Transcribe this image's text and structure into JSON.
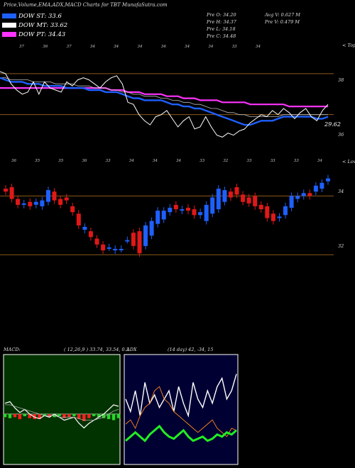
{
  "title": "Price,Volume,EMA,ADX,MACD Charts for TBT MunafaSutra.com",
  "legend": [
    {
      "label": "DOW ST: 33.6",
      "color": "#1e60ff"
    },
    {
      "label": "DOW MT: 33.62",
      "color": "#ffffff"
    },
    {
      "label": "DOW PT: 34.43",
      "color": "#ff33ff"
    }
  ],
  "ohlc": {
    "prev_open": "Pre O: 34.20",
    "prev_high": "Pre H: 34.37",
    "prev_low": "Pre L: 34.18",
    "prev_close": "Pre C: 34.48",
    "avg_volume": "Avg V: 0.627 M",
    "prev_volume": "Pre V: 0.479 M"
  },
  "upper_panel": {
    "corner_label": "< Tops",
    "last_value_label": "29.62",
    "level_labels": [
      "38",
      "36"
    ],
    "top_tick_labels": [
      "37",
      "36",
      "37",
      "34",
      "34",
      "34",
      "34",
      "34",
      "34",
      "33",
      "34"
    ]
  },
  "candle_panel": {
    "corner_label": "< Lows",
    "level_labels": [
      "34",
      "32"
    ],
    "top_tick_labels": [
      "36",
      "35",
      "35",
      "36",
      "33",
      "34",
      "34",
      "34",
      "33",
      "32",
      "33",
      "33",
      "33",
      "34"
    ]
  },
  "macd_panel": {
    "label": "MACD:",
    "values": "( 12,26,9 ) 33.74, 33.54, 0.2"
  },
  "adx_panel": {
    "label": "ADX",
    "values": "(14 day) 42, -34, 15"
  },
  "colors": {
    "background": "#000000",
    "up_candle": "#1e60ff",
    "down_candle": "#e01818",
    "ema_short": "#1e60ff",
    "ema_long": "#ff33ff",
    "level_line": "#8a5a1a",
    "macd_bg": "#003300",
    "adx_bg": "#000033"
  },
  "chart_data": [
    {
      "type": "line",
      "name": "price-ema",
      "x": [
        1,
        2,
        3,
        4,
        5,
        6,
        7,
        8,
        9,
        10,
        11,
        12,
        13,
        14,
        15,
        16,
        17,
        18,
        19,
        20,
        21,
        22,
        23,
        24,
        25,
        26,
        27,
        28,
        29,
        30,
        31,
        32,
        33,
        34,
        35,
        36,
        37,
        38,
        39,
        40,
        41,
        42,
        43,
        44,
        45,
        46,
        47,
        48,
        49,
        50,
        51,
        52,
        53,
        54,
        55,
        56,
        57,
        58,
        59,
        60
      ],
      "series": [
        {
          "name": "DOW ST",
          "values": [
            37.8,
            37.7,
            37.6,
            37.6,
            37.6,
            37.5,
            37.5,
            37.5,
            37.4,
            37.4,
            37.4,
            37.4,
            37.3,
            37.3,
            37.3,
            37.3,
            37.2,
            37.2,
            37.2,
            37.1,
            37.1,
            37.1,
            37.0,
            36.9,
            36.8,
            36.8,
            36.7,
            36.7,
            36.7,
            36.7,
            36.6,
            36.5,
            36.5,
            36.4,
            36.4,
            36.3,
            36.3,
            36.2,
            36.1,
            36.0,
            35.9,
            35.8,
            35.7,
            35.6,
            35.5,
            35.5,
            35.6,
            35.7,
            35.7,
            35.7,
            35.8,
            35.9,
            35.9,
            35.9,
            35.9,
            35.9,
            35.9,
            35.8,
            35.8,
            35.9
          ]
        },
        {
          "name": "DOW MT",
          "values": [
            37.8,
            37.8,
            37.7,
            37.7,
            37.7,
            37.7,
            37.6,
            37.6,
            37.6,
            37.6,
            37.5,
            37.5,
            37.5,
            37.5,
            37.4,
            37.4,
            37.4,
            37.3,
            37.3,
            37.3,
            37.2,
            37.2,
            37.1,
            37.1,
            37.0,
            37.0,
            36.9,
            36.9,
            36.9,
            36.8,
            36.8,
            36.7,
            36.7,
            36.6,
            36.6,
            36.5,
            36.5,
            36.4,
            36.3,
            36.3,
            36.2,
            36.1,
            36.1,
            36.0,
            36.0,
            35.9,
            35.9,
            35.9,
            35.9,
            35.9,
            35.9,
            36.0,
            36.0,
            36.0,
            36.0,
            36.0,
            36.0,
            36.0,
            36.0,
            36.0
          ]
        },
        {
          "name": "DOW PT",
          "values": [
            37.3,
            37.3,
            37.3,
            37.3,
            37.3,
            37.3,
            37.3,
            37.3,
            37.3,
            37.3,
            37.3,
            37.3,
            37.3,
            37.3,
            37.3,
            37.3,
            37.3,
            37.3,
            37.3,
            37.3,
            37.2,
            37.2,
            37.2,
            37.1,
            37.1,
            37.1,
            37.0,
            37.0,
            37.0,
            37.0,
            36.9,
            36.9,
            36.9,
            36.8,
            36.8,
            36.8,
            36.7,
            36.7,
            36.7,
            36.7,
            36.6,
            36.6,
            36.6,
            36.6,
            36.6,
            36.5,
            36.5,
            36.5,
            36.5,
            36.5,
            36.5,
            36.5,
            36.4,
            36.4,
            36.4,
            36.4,
            36.4,
            36.4,
            36.4,
            36.4
          ]
        },
        {
          "name": "Price",
          "values": [
            38.1,
            38.0,
            37.5,
            37.2,
            37.0,
            37.1,
            37.6,
            37.0,
            37.6,
            37.3,
            37.2,
            37.1,
            37.6,
            37.4,
            37.7,
            37.8,
            37.7,
            37.5,
            37.3,
            37.6,
            37.8,
            37.9,
            37.5,
            36.6,
            36.5,
            36.0,
            35.7,
            35.5,
            35.9,
            36.0,
            36.2,
            35.8,
            35.4,
            35.7,
            35.9,
            35.3,
            35.4,
            35.9,
            35.4,
            35.0,
            34.9,
            35.1,
            35.0,
            35.2,
            35.3,
            35.6,
            35.8,
            36.0,
            35.9,
            36.2,
            36.0,
            36.3,
            36.1,
            35.8,
            36.1,
            36.3,
            35.9,
            35.7,
            36.2,
            36.5
          ]
        }
      ],
      "ylim": [
        34.5,
        39.0
      ],
      "levels": [
        38,
        36
      ]
    },
    {
      "type": "bar",
      "name": "candles",
      "series": [
        {
          "name": "open",
          "values": [
            34.25,
            34.3,
            33.9,
            33.7,
            33.8,
            33.7,
            33.65,
            33.8,
            34.15,
            33.9,
            33.95,
            33.65,
            33.4,
            32.85,
            32.8,
            32.55,
            32.35,
            32.25,
            32.15,
            32.2,
            32.5,
            32.75,
            32.8,
            32.3,
            32.65,
            33.05,
            33.2,
            33.45,
            33.7,
            33.5,
            33.6,
            33.55,
            33.35,
            33.15,
            33.4,
            33.55,
            33.8,
            34.15,
            34.3,
            34.05,
            33.95,
            34.0,
            33.7,
            33.65,
            33.4,
            33.25,
            33.35,
            33.6,
            33.9,
            34.0,
            34.1,
            34.15,
            34.25,
            34.5
          ]
        },
        {
          "name": "close",
          "values": [
            34.15,
            33.9,
            33.7,
            33.75,
            33.65,
            33.8,
            33.85,
            34.2,
            33.85,
            33.7,
            33.85,
            33.45,
            33.0,
            32.95,
            32.6,
            32.35,
            32.15,
            32.25,
            32.2,
            32.2,
            32.5,
            32.3,
            32.05,
            33.0,
            33.15,
            33.5,
            33.5,
            33.6,
            33.55,
            33.55,
            33.5,
            33.35,
            33.45,
            33.7,
            33.95,
            34.25,
            34.2,
            33.95,
            34.05,
            33.8,
            33.75,
            33.65,
            33.55,
            33.25,
            33.15,
            33.3,
            33.65,
            34.0,
            34.0,
            34.1,
            34.0,
            34.35,
            34.45,
            34.6
          ]
        }
      ],
      "ylim": [
        31.5,
        35.0
      ],
      "levels": [
        34,
        32
      ]
    },
    {
      "type": "line",
      "name": "macd",
      "series": [
        {
          "name": "MACD",
          "values": [
            33.9,
            34.0,
            33.6,
            33.3,
            33.5,
            33.2,
            33.0,
            32.9,
            33.1,
            33.0,
            33.2,
            33.0,
            32.8,
            32.9,
            33.0,
            32.6,
            32.3,
            32.6,
            32.8,
            33.0,
            33.2,
            33.5,
            33.8,
            33.7
          ]
        },
        {
          "name": "Signal",
          "values": [
            33.8,
            33.8,
            33.7,
            33.6,
            33.5,
            33.4,
            33.3,
            33.2,
            33.1,
            33.1,
            33.1,
            33.0,
            33.0,
            33.0,
            33.0,
            32.9,
            32.8,
            32.8,
            32.8,
            32.9,
            33.0,
            33.2,
            33.4,
            33.5
          ]
        }
      ]
    },
    {
      "type": "line",
      "name": "adx",
      "series": [
        {
          "name": "+DI",
          "values": [
            30,
            24,
            34,
            22,
            38,
            28,
            32,
            26,
            30,
            34,
            24,
            36,
            28,
            22,
            38,
            30,
            26,
            34,
            28,
            36,
            40,
            30,
            34,
            42
          ]
        },
        {
          "name": "-DI",
          "values": [
            18,
            20,
            16,
            22,
            26,
            28,
            34,
            36,
            30,
            28,
            24,
            22,
            20,
            18,
            16,
            14,
            16,
            18,
            20,
            16,
            14,
            12,
            16,
            15
          ]
        },
        {
          "name": "ADX",
          "values": [
            10,
            12,
            14,
            12,
            10,
            13,
            15,
            17,
            14,
            12,
            11,
            13,
            15,
            12,
            10,
            11,
            12,
            10,
            11,
            13,
            12,
            14,
            13,
            15
          ]
        }
      ]
    }
  ]
}
